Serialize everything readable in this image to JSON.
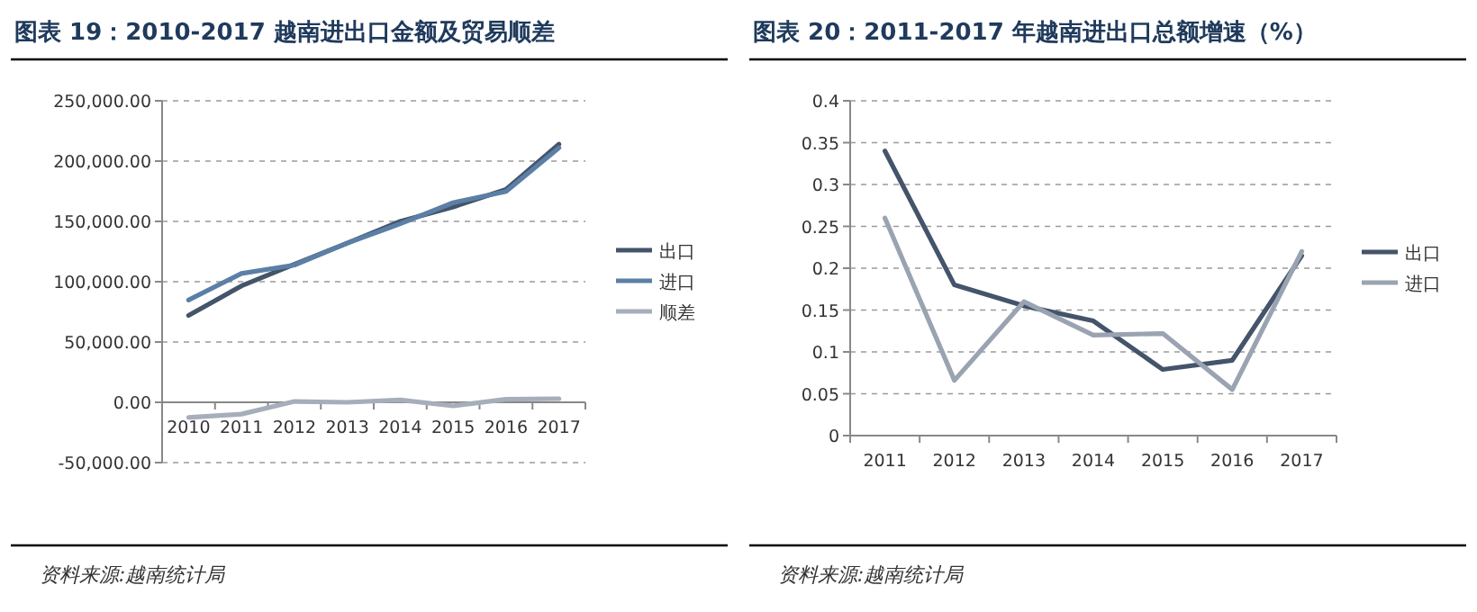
{
  "chart_data": [
    {
      "type": "line",
      "title": "图表 19：2010-2017 越南进出口金额及贸易顺差",
      "categories": [
        "2010",
        "2011",
        "2012",
        "2013",
        "2014",
        "2015",
        "2016",
        "2017"
      ],
      "series": [
        {
          "name": "出口",
          "color": "#44546a",
          "values": [
            72000,
            96500,
            114500,
            132000,
            150000,
            162000,
            176500,
            214000
          ]
        },
        {
          "name": "进口",
          "color": "#5b7fa6",
          "values": [
            84800,
            106800,
            113800,
            132000,
            148000,
            165500,
            174800,
            211000
          ]
        },
        {
          "name": "顺差",
          "color": "#a6aebb",
          "values": [
            -12600,
            -9800,
            700,
            0,
            2000,
            -3000,
            2500,
            3000
          ]
        }
      ],
      "ylim": [
        -50000,
        250000
      ],
      "yticks": [
        {
          "value": -50000,
          "label": "-50,000.00"
        },
        {
          "value": 0,
          "label": "0.00"
        },
        {
          "value": 50000,
          "label": "50,000.00"
        },
        {
          "value": 100000,
          "label": "100,000.00"
        },
        {
          "value": 150000,
          "label": "150,000.00"
        },
        {
          "value": 200000,
          "label": "200,000.00"
        },
        {
          "value": 250000,
          "label": "250,000.00"
        }
      ],
      "grid": "y",
      "legend": "right",
      "annotations": [
        "资料来源:越南统计局"
      ]
    },
    {
      "type": "line",
      "title": "图表 20：2011-2017 年越南进出口总额增速（%）",
      "categories": [
        "2011",
        "2012",
        "2013",
        "2014",
        "2015",
        "2016",
        "2017"
      ],
      "series": [
        {
          "name": "出口",
          "color": "#44546a",
          "values": [
            0.34,
            0.18,
            0.155,
            0.137,
            0.079,
            0.09,
            0.215
          ]
        },
        {
          "name": "进口",
          "color": "#9aa3b1",
          "values": [
            0.26,
            0.066,
            0.16,
            0.12,
            0.122,
            0.055,
            0.22
          ]
        }
      ],
      "ylim": [
        0,
        0.4
      ],
      "yticks": [
        0,
        0.05,
        0.1,
        0.15,
        0.2,
        0.25,
        0.3,
        0.35,
        0.4
      ],
      "grid": "y",
      "legend": "right",
      "annotations": [
        "资料来源:越南统计局"
      ]
    }
  ]
}
